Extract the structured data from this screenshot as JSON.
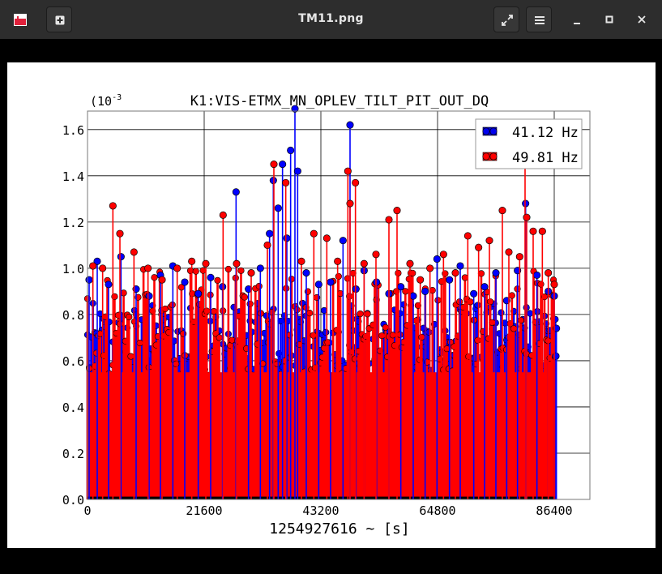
{
  "window": {
    "title": "TM11.png",
    "buttons": [
      "app-icon",
      "new-tab-icon",
      "fullscreen-icon",
      "menu-icon",
      "minimize-icon",
      "maximize-icon",
      "close-icon"
    ]
  },
  "chart_data": {
    "type": "scatter",
    "title": "K1:VIS-ETMX_MN_OPLEV_TILT_PIT_OUT_DQ",
    "xlabel": "1254927616 ~ [s]",
    "ylabel": "",
    "y_exponent_label": "(10",
    "y_exponent_power": "-3",
    "xlim": [
      0,
      93000
    ],
    "ylim": [
      0,
      1.68
    ],
    "x_ticks": [
      0,
      21600,
      43200,
      64800,
      86400
    ],
    "x_tick_labels": [
      "0",
      "21600",
      "43200",
      "64800",
      "86400"
    ],
    "y_ticks": [
      0.0,
      0.2,
      0.4,
      0.6,
      0.8,
      1.0,
      1.2,
      1.4,
      1.6
    ],
    "y_tick_labels": [
      "0.0",
      "0.2",
      "0.4",
      "0.6",
      "0.8",
      "1.0",
      "1.2",
      "1.4",
      "1.6"
    ],
    "grid": true,
    "legend_position": "top-right",
    "series": [
      {
        "name": "41.12 Hz",
        "color": "#0000ff",
        "style": "stem",
        "values": [
          [
            300,
            0.95
          ],
          [
            1800,
            1.03
          ],
          [
            3900,
            0.93
          ],
          [
            6200,
            1.05
          ],
          [
            9000,
            0.91
          ],
          [
            11400,
            0.88
          ],
          [
            13500,
            0.97
          ],
          [
            15800,
            1.01
          ],
          [
            18000,
            0.94
          ],
          [
            20500,
            0.89
          ],
          [
            22800,
            0.96
          ],
          [
            25000,
            0.92
          ],
          [
            27500,
            1.33
          ],
          [
            29800,
            0.91
          ],
          [
            32000,
            1.0
          ],
          [
            33700,
            1.15
          ],
          [
            34400,
            1.38
          ],
          [
            35300,
            1.26
          ],
          [
            36100,
            1.45
          ],
          [
            36900,
            1.13
          ],
          [
            37600,
            1.51
          ],
          [
            38400,
            1.69
          ],
          [
            38900,
            1.42
          ],
          [
            40500,
            0.98
          ],
          [
            42800,
            0.93
          ],
          [
            45000,
            0.94
          ],
          [
            47300,
            1.12
          ],
          [
            48600,
            1.62
          ],
          [
            49700,
            0.91
          ],
          [
            51200,
            0.99
          ],
          [
            53500,
            0.94
          ],
          [
            55800,
            0.89
          ],
          [
            58000,
            0.92
          ],
          [
            60300,
            0.88
          ],
          [
            62500,
            0.9
          ],
          [
            64700,
            1.04
          ],
          [
            67000,
            0.95
          ],
          [
            69000,
            1.01
          ],
          [
            71500,
            0.89
          ],
          [
            73500,
            0.92
          ],
          [
            75600,
            0.98
          ],
          [
            77600,
            0.86
          ],
          [
            79600,
            0.99
          ],
          [
            81100,
            1.28
          ],
          [
            83200,
            0.97
          ],
          [
            85300,
            0.9
          ],
          [
            86400,
            0.88
          ],
          [
            86700,
            0.62
          ],
          [
            86800,
            0.74
          ]
        ],
        "bulk_range": [
          0.45,
          0.85
        ]
      },
      {
        "name": "49.81 Hz",
        "color": "#ff0000",
        "style": "stem",
        "values": [
          [
            1000,
            1.01
          ],
          [
            2800,
            1.0
          ],
          [
            4700,
            1.27
          ],
          [
            6000,
            1.15
          ],
          [
            8600,
            1.07
          ],
          [
            11200,
            1.0
          ],
          [
            13800,
            0.95
          ],
          [
            16600,
            1.0
          ],
          [
            19300,
            1.03
          ],
          [
            21900,
            1.02
          ],
          [
            25100,
            1.23
          ],
          [
            27600,
            1.02
          ],
          [
            30300,
            0.98
          ],
          [
            33300,
            1.1
          ],
          [
            34500,
            1.45
          ],
          [
            36700,
            1.37
          ],
          [
            39600,
            1.03
          ],
          [
            41900,
            1.15
          ],
          [
            44300,
            1.13
          ],
          [
            46300,
            1.03
          ],
          [
            48200,
            1.42
          ],
          [
            48600,
            1.28
          ],
          [
            49600,
            1.37
          ],
          [
            51200,
            1.02
          ],
          [
            53400,
            1.06
          ],
          [
            55800,
            1.21
          ],
          [
            57300,
            1.25
          ],
          [
            59700,
            1.02
          ],
          [
            61600,
            0.95
          ],
          [
            63400,
            1.0
          ],
          [
            65900,
            1.06
          ],
          [
            68100,
            0.98
          ],
          [
            70400,
            1.14
          ],
          [
            72400,
            1.09
          ],
          [
            74400,
            1.12
          ],
          [
            76800,
            1.25
          ],
          [
            78000,
            1.07
          ],
          [
            80000,
            1.05
          ],
          [
            81000,
            1.45
          ],
          [
            81300,
            1.22
          ],
          [
            82500,
            1.16
          ],
          [
            84200,
            1.16
          ],
          [
            85300,
            0.98
          ],
          [
            86400,
            0.93
          ]
        ],
        "bulk_range": [
          0.44,
          1.0
        ]
      }
    ]
  }
}
